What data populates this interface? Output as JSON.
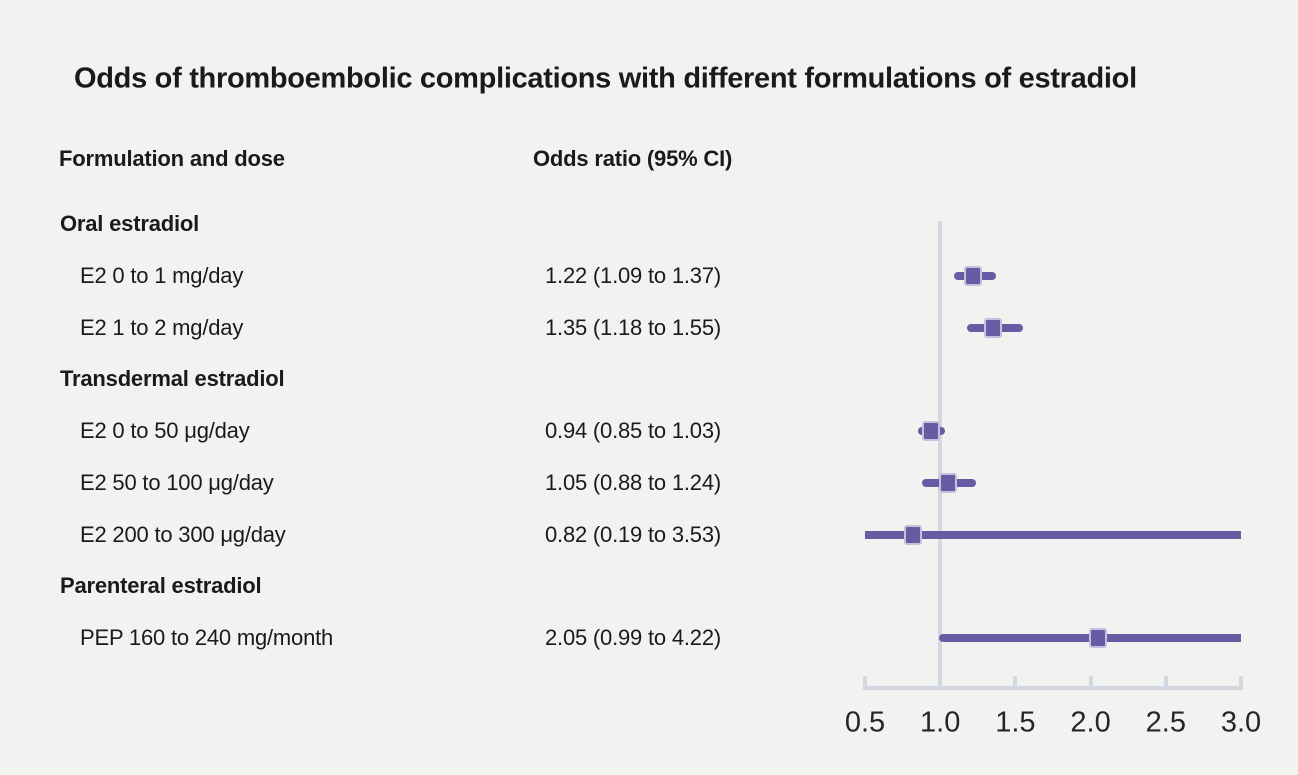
{
  "title": "Odds of thromboembolic complications with different formulations of estradiol",
  "columns": {
    "formulation": "Formulation and dose",
    "odds_ratio": "Odds ratio (95% CI)"
  },
  "colors": {
    "background": "#f2f2f0",
    "purple": "#695aa4",
    "marker_border": "#c7c0dd",
    "grid_gray": "#d3d7e0",
    "text": "#1a1a1a"
  },
  "chart_data": {
    "type": "forest",
    "title": "Odds of thromboembolic complications with different formulations of estradiol",
    "x_axis": {
      "min": 0.5,
      "max": 3.0,
      "reference_line": 1.0,
      "tick_labels": [
        "0.5",
        "1.0",
        "1.5",
        "2.0",
        "2.5",
        "3.0"
      ]
    },
    "legend": "none",
    "rows": [
      {
        "kind": "section",
        "label": "Oral estradiol"
      },
      {
        "kind": "item",
        "label": "E2 0 to 1 mg/day",
        "display": "1.22 (1.09 to 1.37)",
        "or": 1.22,
        "low": 1.09,
        "high": 1.37
      },
      {
        "kind": "item",
        "label": "E2 1 to 2 mg/day",
        "display": "1.35 (1.18 to 1.55)",
        "or": 1.35,
        "low": 1.18,
        "high": 1.55
      },
      {
        "kind": "section",
        "label": "Transdermal estradiol"
      },
      {
        "kind": "item",
        "label": "E2 0 to 50 μg/day",
        "display": "0.94 (0.85 to 1.03)",
        "or": 0.94,
        "low": 0.85,
        "high": 1.03
      },
      {
        "kind": "item",
        "label": "E2 50 to 100 μg/day",
        "display": "1.05 (0.88 to 1.24)",
        "or": 1.05,
        "low": 0.88,
        "high": 1.24
      },
      {
        "kind": "item",
        "label": "E2 200 to 300 μg/day",
        "display": "0.82 (0.19 to 3.53)",
        "or": 0.82,
        "low": 0.19,
        "high": 3.53
      },
      {
        "kind": "section",
        "label": "Parenteral estradiol"
      },
      {
        "kind": "item",
        "label": "PEP 160 to 240 mg/month",
        "display": "2.05 (0.99 to 4.22)",
        "or": 2.05,
        "low": 0.99,
        "high": 4.22
      }
    ]
  }
}
